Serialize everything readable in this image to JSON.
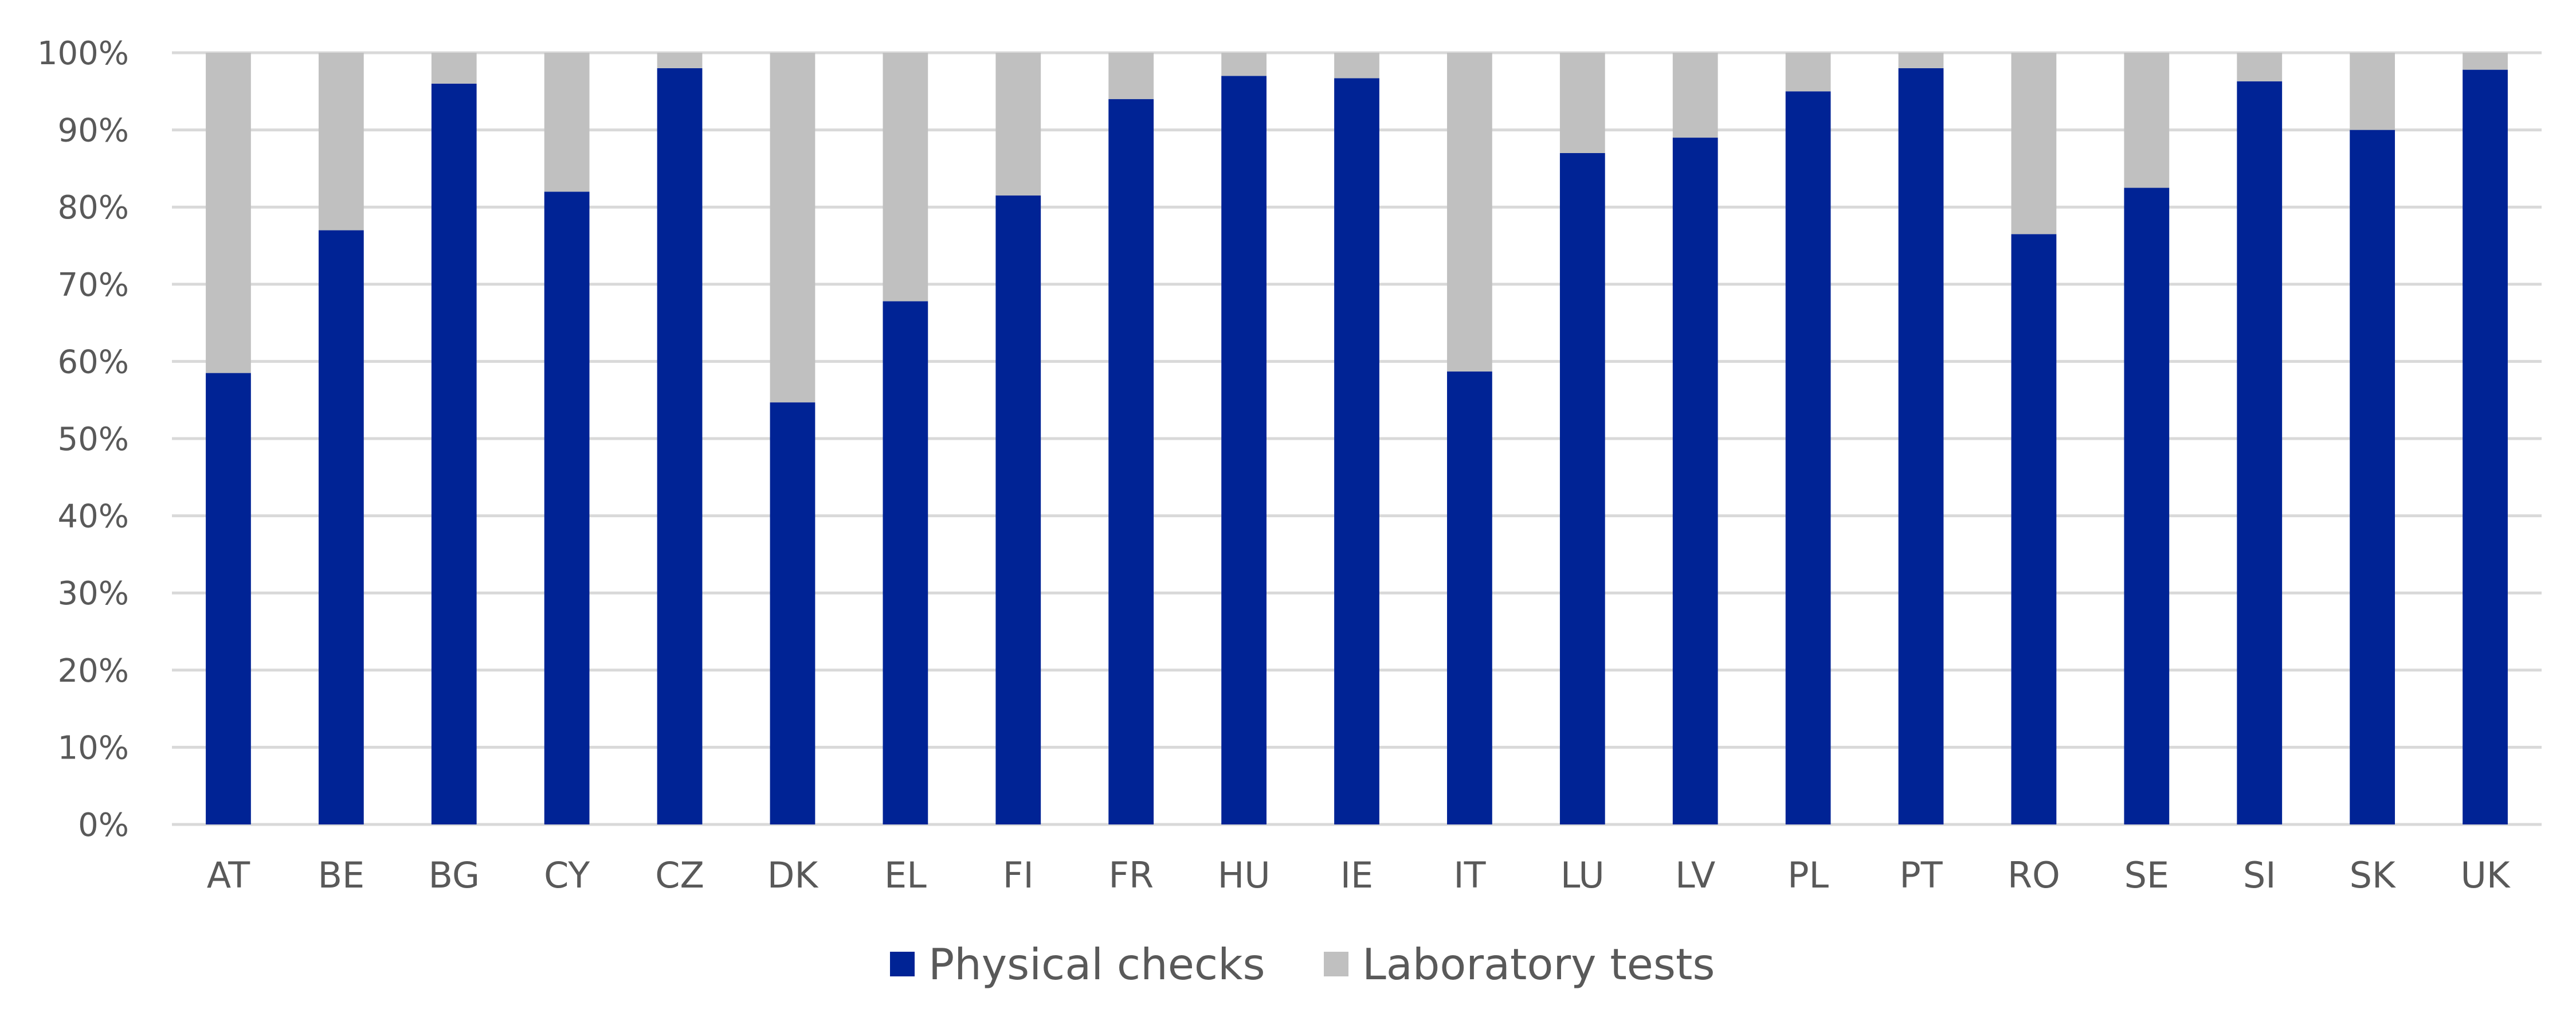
{
  "chart_data": {
    "type": "bar",
    "stacked": true,
    "title": "",
    "xlabel": "",
    "ylabel": "",
    "ylim": [
      0,
      100
    ],
    "y_ticks": [
      0,
      10,
      20,
      30,
      40,
      50,
      60,
      70,
      80,
      90,
      100
    ],
    "y_tick_labels": [
      "0%",
      "10%",
      "20%",
      "30%",
      "40%",
      "50%",
      "60%",
      "70%",
      "80%",
      "90%",
      "100%"
    ],
    "grid": true,
    "legend_position": "bottom",
    "categories": [
      "AT",
      "BE",
      "BG",
      "CY",
      "CZ",
      "DK",
      "EL",
      "FI",
      "FR",
      "HU",
      "IE",
      "IT",
      "LU",
      "LV",
      "PL",
      "PT",
      "RO",
      "SE",
      "SI",
      "SK",
      "UK"
    ],
    "series": [
      {
        "name": "Physical checks",
        "color": "#002395",
        "values": [
          58.5,
          77,
          96,
          82,
          98,
          54.7,
          67.8,
          81.5,
          94,
          97,
          96.7,
          58.7,
          87,
          89,
          95,
          98,
          76.5,
          82.5,
          96.3,
          90,
          97.8
        ]
      },
      {
        "name": "Laboratory tests",
        "color": "#c0c0c0",
        "values": [
          41.5,
          23,
          4,
          18,
          2,
          45.3,
          32.2,
          18.5,
          6,
          3,
          3.3,
          41.3,
          13,
          11,
          5,
          2,
          23.5,
          17.5,
          3.7,
          10,
          2.2
        ]
      }
    ]
  }
}
